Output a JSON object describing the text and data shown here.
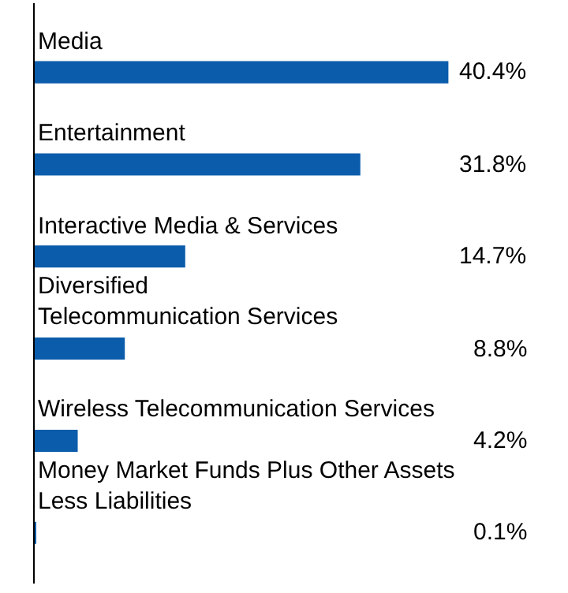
{
  "chart_data": {
    "type": "bar",
    "orientation": "horizontal",
    "categories": [
      "Media",
      "Entertainment",
      "Interactive Media & Services",
      "Diversified\nTelecommunication Services",
      "Wireless Telecommunication Services",
      "Money Market Funds Plus Other Assets\nLess Liabilities"
    ],
    "values": [
      40.4,
      31.8,
      14.7,
      8.8,
      4.2,
      0.1
    ],
    "value_labels": [
      "40.4%",
      "31.8%",
      "14.7%",
      "8.8%",
      "4.2%",
      "0.1%"
    ],
    "color": "#0b5cab",
    "legend": false,
    "tick_labels": false
  }
}
